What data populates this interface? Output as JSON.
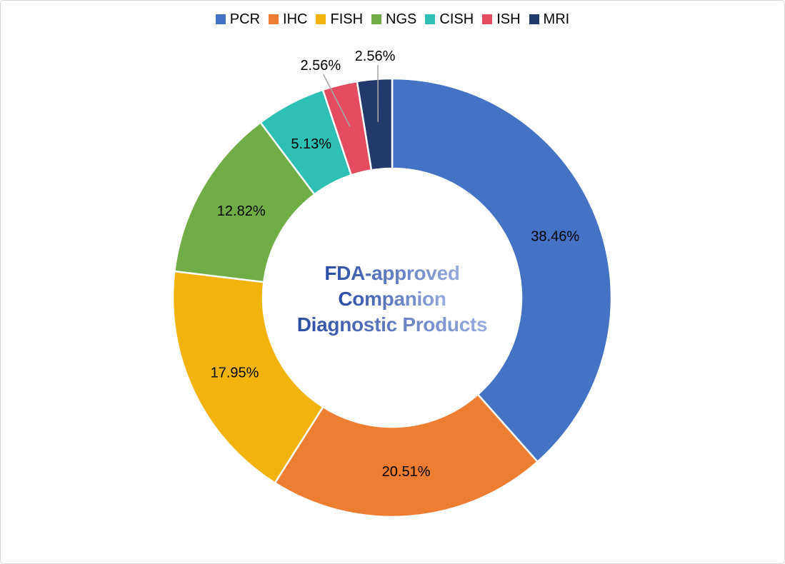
{
  "frame": {
    "background": "#FFFFFF",
    "border_color": "#D6D6D6"
  },
  "center_title": {
    "lines": [
      "FDA-approved",
      "Companion",
      "Diagnostic Products"
    ],
    "gradient_from": "#2A4CA4",
    "gradient_to": "#98ACDC"
  },
  "chart_data": {
    "type": "pie",
    "subtype": "donut",
    "title": "FDA-approved Companion Diagnostic Products",
    "categories": [
      "PCR",
      "IHC",
      "FISH",
      "NGS",
      "CISH",
      "ISH",
      "MRI"
    ],
    "values": [
      38.46,
      20.51,
      17.95,
      12.82,
      5.13,
      2.56,
      2.56
    ],
    "labels": [
      "38.46%",
      "20.51%",
      "17.95%",
      "12.82%",
      "5.13%",
      "2.56%",
      "2.56%"
    ],
    "colors": [
      "#4472C4",
      "#ED7D31",
      "#F2B40C",
      "#70AD47",
      "#2EC0B4",
      "#E64C5F",
      "#21396B"
    ],
    "legend_position": "top",
    "legend_text_color": "#000000",
    "start_angle_deg": 0,
    "direction": "clockwise",
    "donut_hole_ratio": 0.59,
    "outside_label_threshold_pct": 5,
    "slice_label_color": "#000000",
    "slice_border_color": "#FFFFFF",
    "leader_line_color": "#A6A6A6"
  }
}
